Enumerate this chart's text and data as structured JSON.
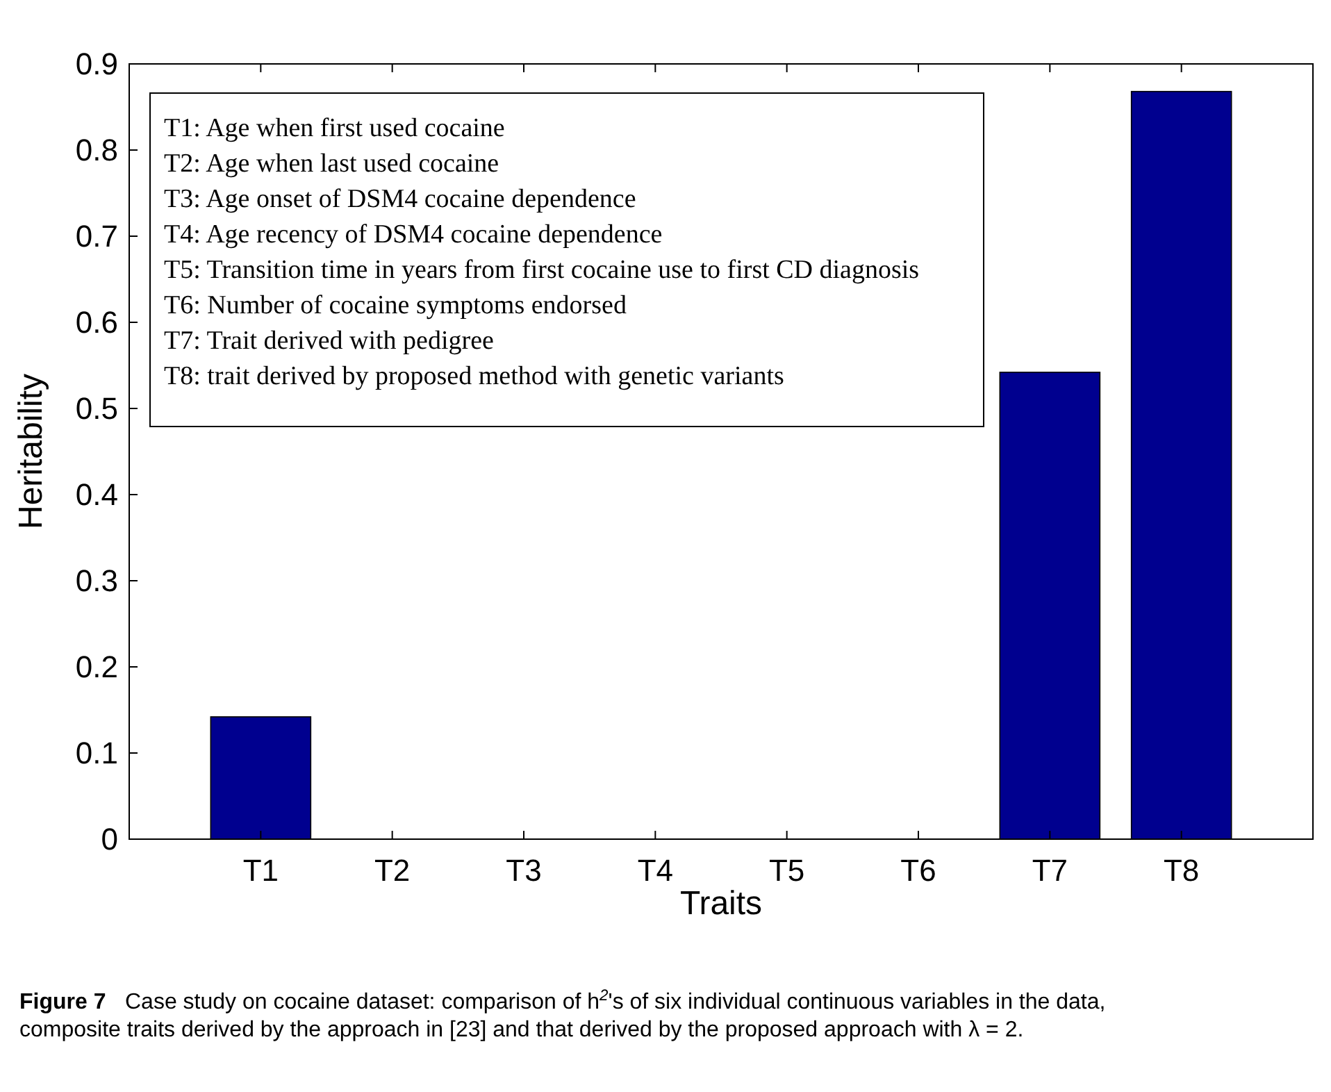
{
  "chart_data": {
    "type": "bar",
    "xlabel": "Traits",
    "ylabel": "Heritability",
    "categories": [
      "T1",
      "T2",
      "T3",
      "T4",
      "T5",
      "T6",
      "T7",
      "T8"
    ],
    "values": [
      0.142,
      0,
      0,
      0,
      0,
      0,
      0.542,
      0.868
    ],
    "color": "#00008f",
    "ylim": [
      0,
      0.9
    ],
    "yticks": [
      0,
      0.1,
      0.2,
      0.3,
      0.4,
      0.5,
      0.6,
      0.7,
      0.8,
      0.9
    ],
    "grid": false,
    "annotations": [
      "T1: Age when first used cocaine",
      "T2: Age when last used cocaine",
      "T3: Age onset of DSM4 cocaine dependence",
      "T4: Age recency of DSM4 cocaine dependence",
      "T5: Transition time in years from first cocaine use to first CD diagnosis",
      "T6: Number of cocaine symptoms endorsed",
      "T7: Trait derived with pedigree",
      "T8: trait derived by proposed method with genetic variants",
      "Figure 7",
      "Case study on cocaine dataset: comparison of h$^{2}$'s of six individual continuous variables in the data, composite traits derived by the approach in [23] and that derived by the proposed approach with λ = 2."
    ]
  }
}
